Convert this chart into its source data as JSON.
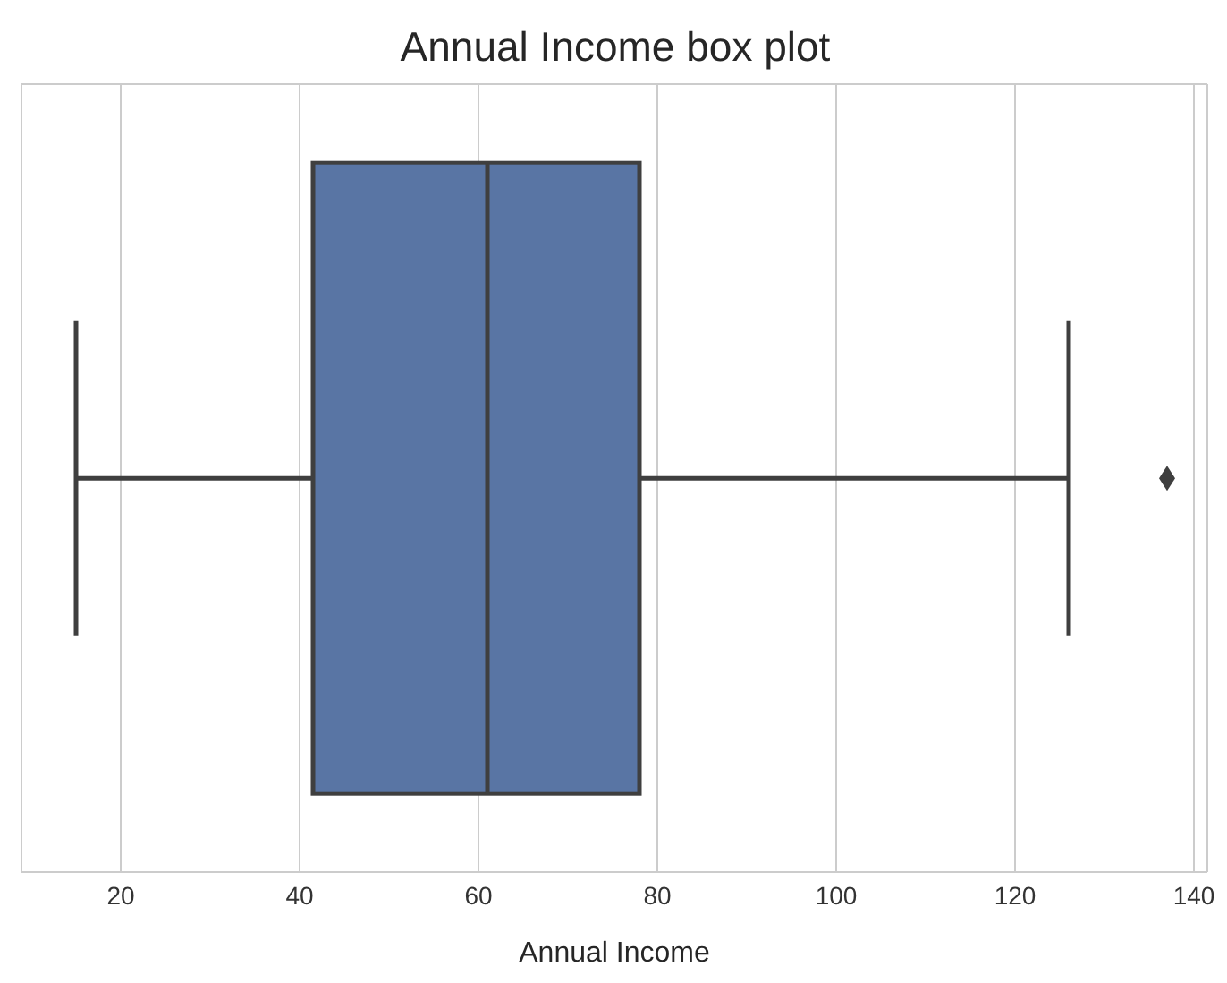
{
  "chart_data": {
    "type": "box",
    "title": "Annual Income box plot",
    "xlabel": "Annual Income",
    "orientation": "horizontal",
    "categories": [
      null
    ],
    "color": "#5975a4",
    "boxes": [
      {
        "low": 15,
        "q1": 41.5,
        "median": 61,
        "q3": 78,
        "high": 126,
        "outliers": [
          137
        ]
      }
    ],
    "xlim": [
      8.9,
      141.5
    ],
    "xticks": [
      20,
      40,
      60,
      80,
      100,
      120,
      140
    ],
    "grid": "x"
  }
}
